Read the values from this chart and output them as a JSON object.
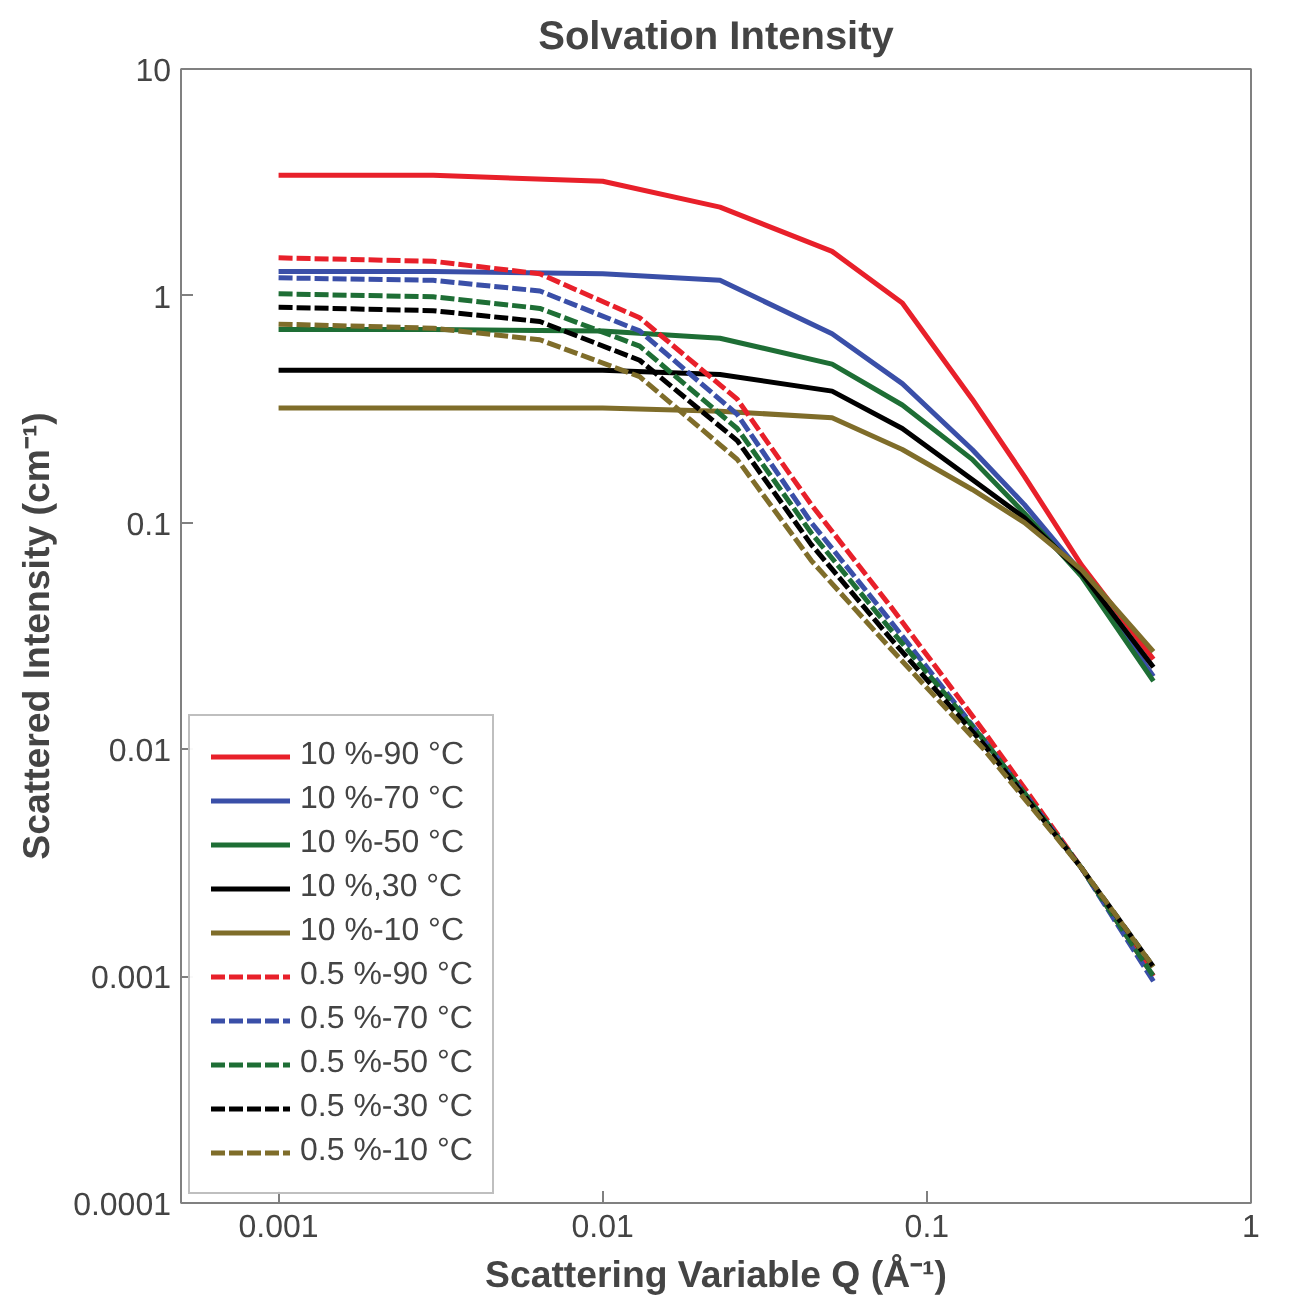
{
  "chart_data": {
    "type": "line",
    "title": "Solvation Intensity",
    "xlabel": "Scattering Variable Q (Å⁻¹)",
    "ylabel": "Scattered Intensity (cm⁻¹)",
    "log": "xy",
    "xlim": [
      0.0005,
      1
    ],
    "ylim": [
      0.0001,
      10
    ],
    "xticks": [
      0.001,
      0.01,
      0.1,
      1
    ],
    "yticks": [
      0.0001,
      0.001,
      0.01,
      0.1,
      1,
      10
    ],
    "grid": false,
    "legend": "bottom left",
    "marker": "none",
    "series": [
      {
        "name": "10 %-90 °C",
        "color": "#e8202a",
        "line_style": "solid",
        "x": [
          0.001,
          0.003,
          0.01,
          0.023,
          0.051,
          0.084,
          0.138,
          0.2,
          0.3,
          0.5
        ],
        "values": [
          3.4,
          3.4,
          3.2,
          2.46,
          1.57,
          0.93,
          0.35,
          0.16,
          0.065,
          0.025
        ]
      },
      {
        "name": "10 %-70 °C",
        "color": "#3a4fa8",
        "line_style": "solid",
        "x": [
          0.001,
          0.003,
          0.01,
          0.023,
          0.051,
          0.084,
          0.138,
          0.2,
          0.3,
          0.5
        ],
        "values": [
          1.28,
          1.28,
          1.25,
          1.17,
          0.68,
          0.41,
          0.21,
          0.12,
          0.06,
          0.021
        ]
      },
      {
        "name": "10 %-50 °C",
        "color": "#1e6e35",
        "line_style": "solid",
        "x": [
          0.001,
          0.003,
          0.01,
          0.023,
          0.051,
          0.084,
          0.138,
          0.2,
          0.3,
          0.5
        ],
        "values": [
          0.71,
          0.71,
          0.7,
          0.65,
          0.5,
          0.33,
          0.19,
          0.11,
          0.058,
          0.02
        ]
      },
      {
        "name": "10 %,30 °C",
        "color": "#000000",
        "line_style": "solid",
        "x": [
          0.001,
          0.003,
          0.01,
          0.023,
          0.051,
          0.084,
          0.138,
          0.2,
          0.3,
          0.5
        ],
        "values": [
          0.47,
          0.47,
          0.47,
          0.45,
          0.38,
          0.26,
          0.155,
          0.105,
          0.06,
          0.023
        ]
      },
      {
        "name": "10 %-10 °C",
        "color": "#7f6d2a",
        "line_style": "solid",
        "x": [
          0.001,
          0.003,
          0.01,
          0.023,
          0.051,
          0.084,
          0.138,
          0.2,
          0.3,
          0.5
        ],
        "values": [
          0.32,
          0.32,
          0.32,
          0.31,
          0.29,
          0.21,
          0.14,
          0.1,
          0.062,
          0.027
        ]
      },
      {
        "name": "0.5 %-90 °C",
        "color": "#e8202a",
        "line_style": "dashed",
        "x": [
          0.001,
          0.003,
          0.0064,
          0.013,
          0.026,
          0.044,
          0.077,
          0.15,
          0.3,
          0.5
        ],
        "values": [
          1.47,
          1.42,
          1.25,
          0.8,
          0.35,
          0.12,
          0.043,
          0.012,
          0.003,
          0.001
        ]
      },
      {
        "name": "0.5 %-70 °C",
        "color": "#3a4fa8",
        "line_style": "dashed",
        "x": [
          0.001,
          0.003,
          0.0064,
          0.013,
          0.026,
          0.044,
          0.077,
          0.15,
          0.3,
          0.5
        ],
        "values": [
          1.2,
          1.17,
          1.05,
          0.7,
          0.3,
          0.1,
          0.037,
          0.011,
          0.003,
          0.00095
        ]
      },
      {
        "name": "0.5 %-50 °C",
        "color": "#1e6e35",
        "line_style": "dashed",
        "x": [
          0.001,
          0.003,
          0.0064,
          0.013,
          0.026,
          0.044,
          0.077,
          0.15,
          0.3,
          0.5
        ],
        "values": [
          1.02,
          0.99,
          0.88,
          0.6,
          0.26,
          0.09,
          0.034,
          0.011,
          0.003,
          0.001
        ]
      },
      {
        "name": "0.5 %-30 °C",
        "color": "#000000",
        "line_style": "dashed",
        "x": [
          0.001,
          0.003,
          0.0064,
          0.013,
          0.026,
          0.044,
          0.077,
          0.15,
          0.3,
          0.5
        ],
        "values": [
          0.89,
          0.86,
          0.77,
          0.52,
          0.23,
          0.08,
          0.031,
          0.0105,
          0.003,
          0.0011
        ]
      },
      {
        "name": "0.5 %-10 °C",
        "color": "#7f6d2a",
        "line_style": "dashed",
        "x": [
          0.001,
          0.003,
          0.0064,
          0.013,
          0.026,
          0.044,
          0.077,
          0.15,
          0.3,
          0.5
        ],
        "values": [
          0.75,
          0.72,
          0.64,
          0.44,
          0.19,
          0.068,
          0.028,
          0.01,
          0.003,
          0.0011
        ]
      }
    ]
  }
}
